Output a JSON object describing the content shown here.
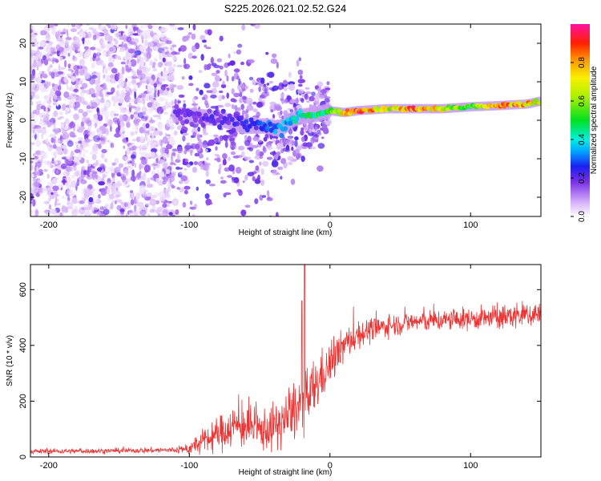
{
  "title": "S225.2026.021.02.52.G24",
  "colors": {
    "snr_line": "#ee3333",
    "axis": "#000000",
    "background": "#ffffff"
  },
  "chart_data": [
    {
      "type": "heatmap",
      "title": "S225.2026.021.02.52.G24",
      "xlabel": "Height of straight line (km)",
      "ylabel": "Frequency (Hz)",
      "xlim": [
        -213,
        150
      ],
      "ylim": [
        -25,
        25
      ],
      "xticks": [
        -200,
        -100,
        0,
        100
      ],
      "yticks": [
        -20,
        -10,
        0,
        10,
        20
      ],
      "colorbar": {
        "label": "Normalized spectral amplitude",
        "range": [
          0,
          1
        ],
        "ticks": [
          0.0,
          0.2,
          0.4,
          0.6,
          0.8
        ],
        "tick_labels": [
          "0.0",
          "0.2",
          "0.4",
          "0.6",
          "0.8"
        ]
      },
      "ridge": {
        "description_points_x": [
          -110,
          -80,
          -60,
          -45,
          -35,
          -28,
          -20,
          -10,
          0,
          10,
          20,
          40,
          60,
          80,
          100,
          120,
          140,
          150
        ],
        "description_points_freq": [
          1.5,
          0.5,
          -1.5,
          -1.5,
          -2.5,
          0,
          1,
          1.5,
          2.5,
          2,
          2.5,
          3,
          3,
          3,
          3.5,
          3.8,
          4.2,
          5
        ],
        "amplitude": [
          0.2,
          0.22,
          0.25,
          0.3,
          0.35,
          0.4,
          0.45,
          0.5,
          0.55,
          0.75,
          0.95,
          0.7,
          0.9,
          0.7,
          0.55,
          0.9,
          0.85,
          0.7
        ]
      },
      "noise_region": {
        "x_range": [
          -213,
          -110
        ],
        "freq_range": [
          -25,
          25
        ],
        "amplitude": 0.1
      }
    },
    {
      "type": "line",
      "xlabel": "Height of straight line (km)",
      "ylabel": "SNR (10 * v/v)",
      "xlim": [
        -213,
        150
      ],
      "ylim": [
        0,
        690
      ],
      "xticks": [
        -200,
        -100,
        0,
        100
      ],
      "yticks": [
        0,
        200,
        400,
        600
      ],
      "series": [
        {
          "name": "SNR",
          "envelope_x": [
            -213,
            -150,
            -110,
            -100,
            -90,
            -80,
            -70,
            -60,
            -50,
            -40,
            -30,
            -20,
            -15,
            -10,
            0,
            10,
            20,
            40,
            60,
            80,
            100,
            120,
            140,
            150
          ],
          "envelope_mean": [
            20,
            22,
            25,
            30,
            55,
            80,
            110,
            110,
            95,
            105,
            140,
            190,
            210,
            260,
            330,
            400,
            440,
            470,
            485,
            490,
            495,
            500,
            510,
            515
          ],
          "noise_amplitude": [
            8,
            8,
            10,
            20,
            40,
            55,
            70,
            70,
            65,
            75,
            85,
            100,
            110,
            90,
            70,
            55,
            45,
            35,
            35,
            35,
            35,
            40,
            45,
            45
          ],
          "spikes": [
            {
              "x": -18,
              "value": 690
            },
            {
              "x": -20,
              "value": 560
            }
          ]
        }
      ]
    }
  ]
}
